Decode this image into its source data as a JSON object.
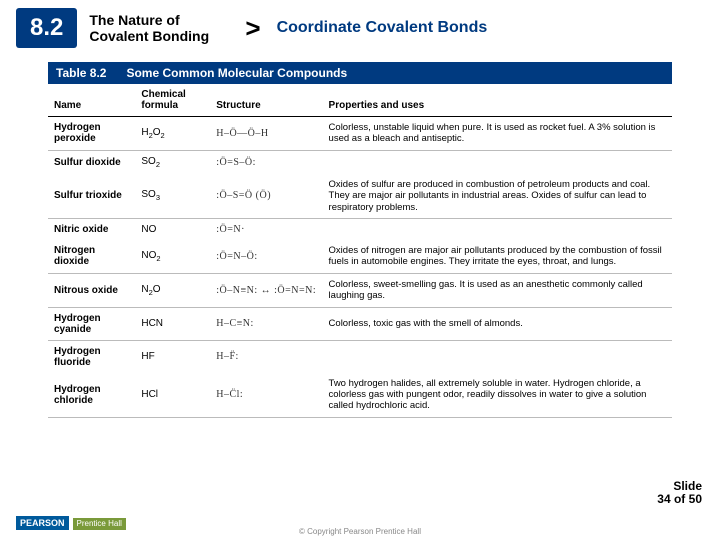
{
  "header": {
    "section_number": "8.2",
    "chapter_title": "The Nature of Covalent Bonding",
    "subtopic": "Coordinate Covalent Bonds"
  },
  "table": {
    "number": "Table 8.2",
    "title": "Some Common Molecular Compounds",
    "columns": [
      "Name",
      "Chemical formula",
      "Structure",
      "Properties and uses"
    ],
    "col_widths": [
      "14%",
      "12%",
      "18%",
      "56%"
    ],
    "rows": [
      {
        "name": "Hydrogen peroxide",
        "formula_html": "H<sub>2</sub>O<sub>2</sub>",
        "structure": "H–Ö—Ö–H",
        "prop": "Colorless, unstable liquid when pure. It is used as rocket fuel. A 3% solution is used as a bleach and antiseptic."
      },
      {
        "name": "Sulfur dioxide",
        "formula_html": "SO<sub>2</sub>",
        "structure": ":Ö=S–Ö:",
        "prop": "",
        "no_bottom": true
      },
      {
        "name": "Sulfur trioxide",
        "formula_html": "SO<sub>3</sub>",
        "structure": ":Ö–S=Ö  (Ö)",
        "prop": "Oxides of sulfur are produced in combustion of petroleum products and coal. They are major air pollutants in industrial areas. Oxides of sulfur can lead to respiratory problems."
      },
      {
        "name": "Nitric oxide",
        "formula_html": "NO",
        "structure": ":Ö=N·",
        "prop": "",
        "no_bottom": true
      },
      {
        "name": "Nitrogen dioxide",
        "formula_html": "NO<sub>2</sub>",
        "structure": ":Ö=N–Ö:",
        "prop": "Oxides of nitrogen are major air pollutants produced by the combustion of fossil fuels in automobile engines. They irritate the eyes, throat, and lungs."
      },
      {
        "name": "Nitrous oxide",
        "formula_html": "N<sub>2</sub>O",
        "structure": ":Ö–N≡N: ↔ :Ö=N=N:",
        "prop": "Colorless, sweet-smelling gas. It is used as an anesthetic commonly called laughing gas."
      },
      {
        "name": "Hydrogen cyanide",
        "formula_html": "HCN",
        "structure": "H–C≡N:",
        "prop": "Colorless, toxic gas with the smell of almonds."
      },
      {
        "name": "Hydrogen fluoride",
        "formula_html": "HF",
        "structure": "H–F̈:",
        "prop": "",
        "no_bottom": true
      },
      {
        "name": "Hydrogen chloride",
        "formula_html": "HCl",
        "structure": "H–C̈l:",
        "prop": "Two hydrogen halides, all extremely soluble in water. Hydrogen chloride, a colorless gas with pungent odor, readily dissolves in water to give a solution called hydrochloric acid."
      }
    ]
  },
  "footer": {
    "slide_label": "Slide",
    "slide_pos": "34 of 50",
    "copyright": "© Copyright Pearson Prentice Hall",
    "logo1": "PEARSON",
    "logo2": "Prentice Hall"
  },
  "colors": {
    "brand_blue": "#003a80",
    "pearson_blue": "#005a9c",
    "ph_green": "#7a9a3a"
  }
}
